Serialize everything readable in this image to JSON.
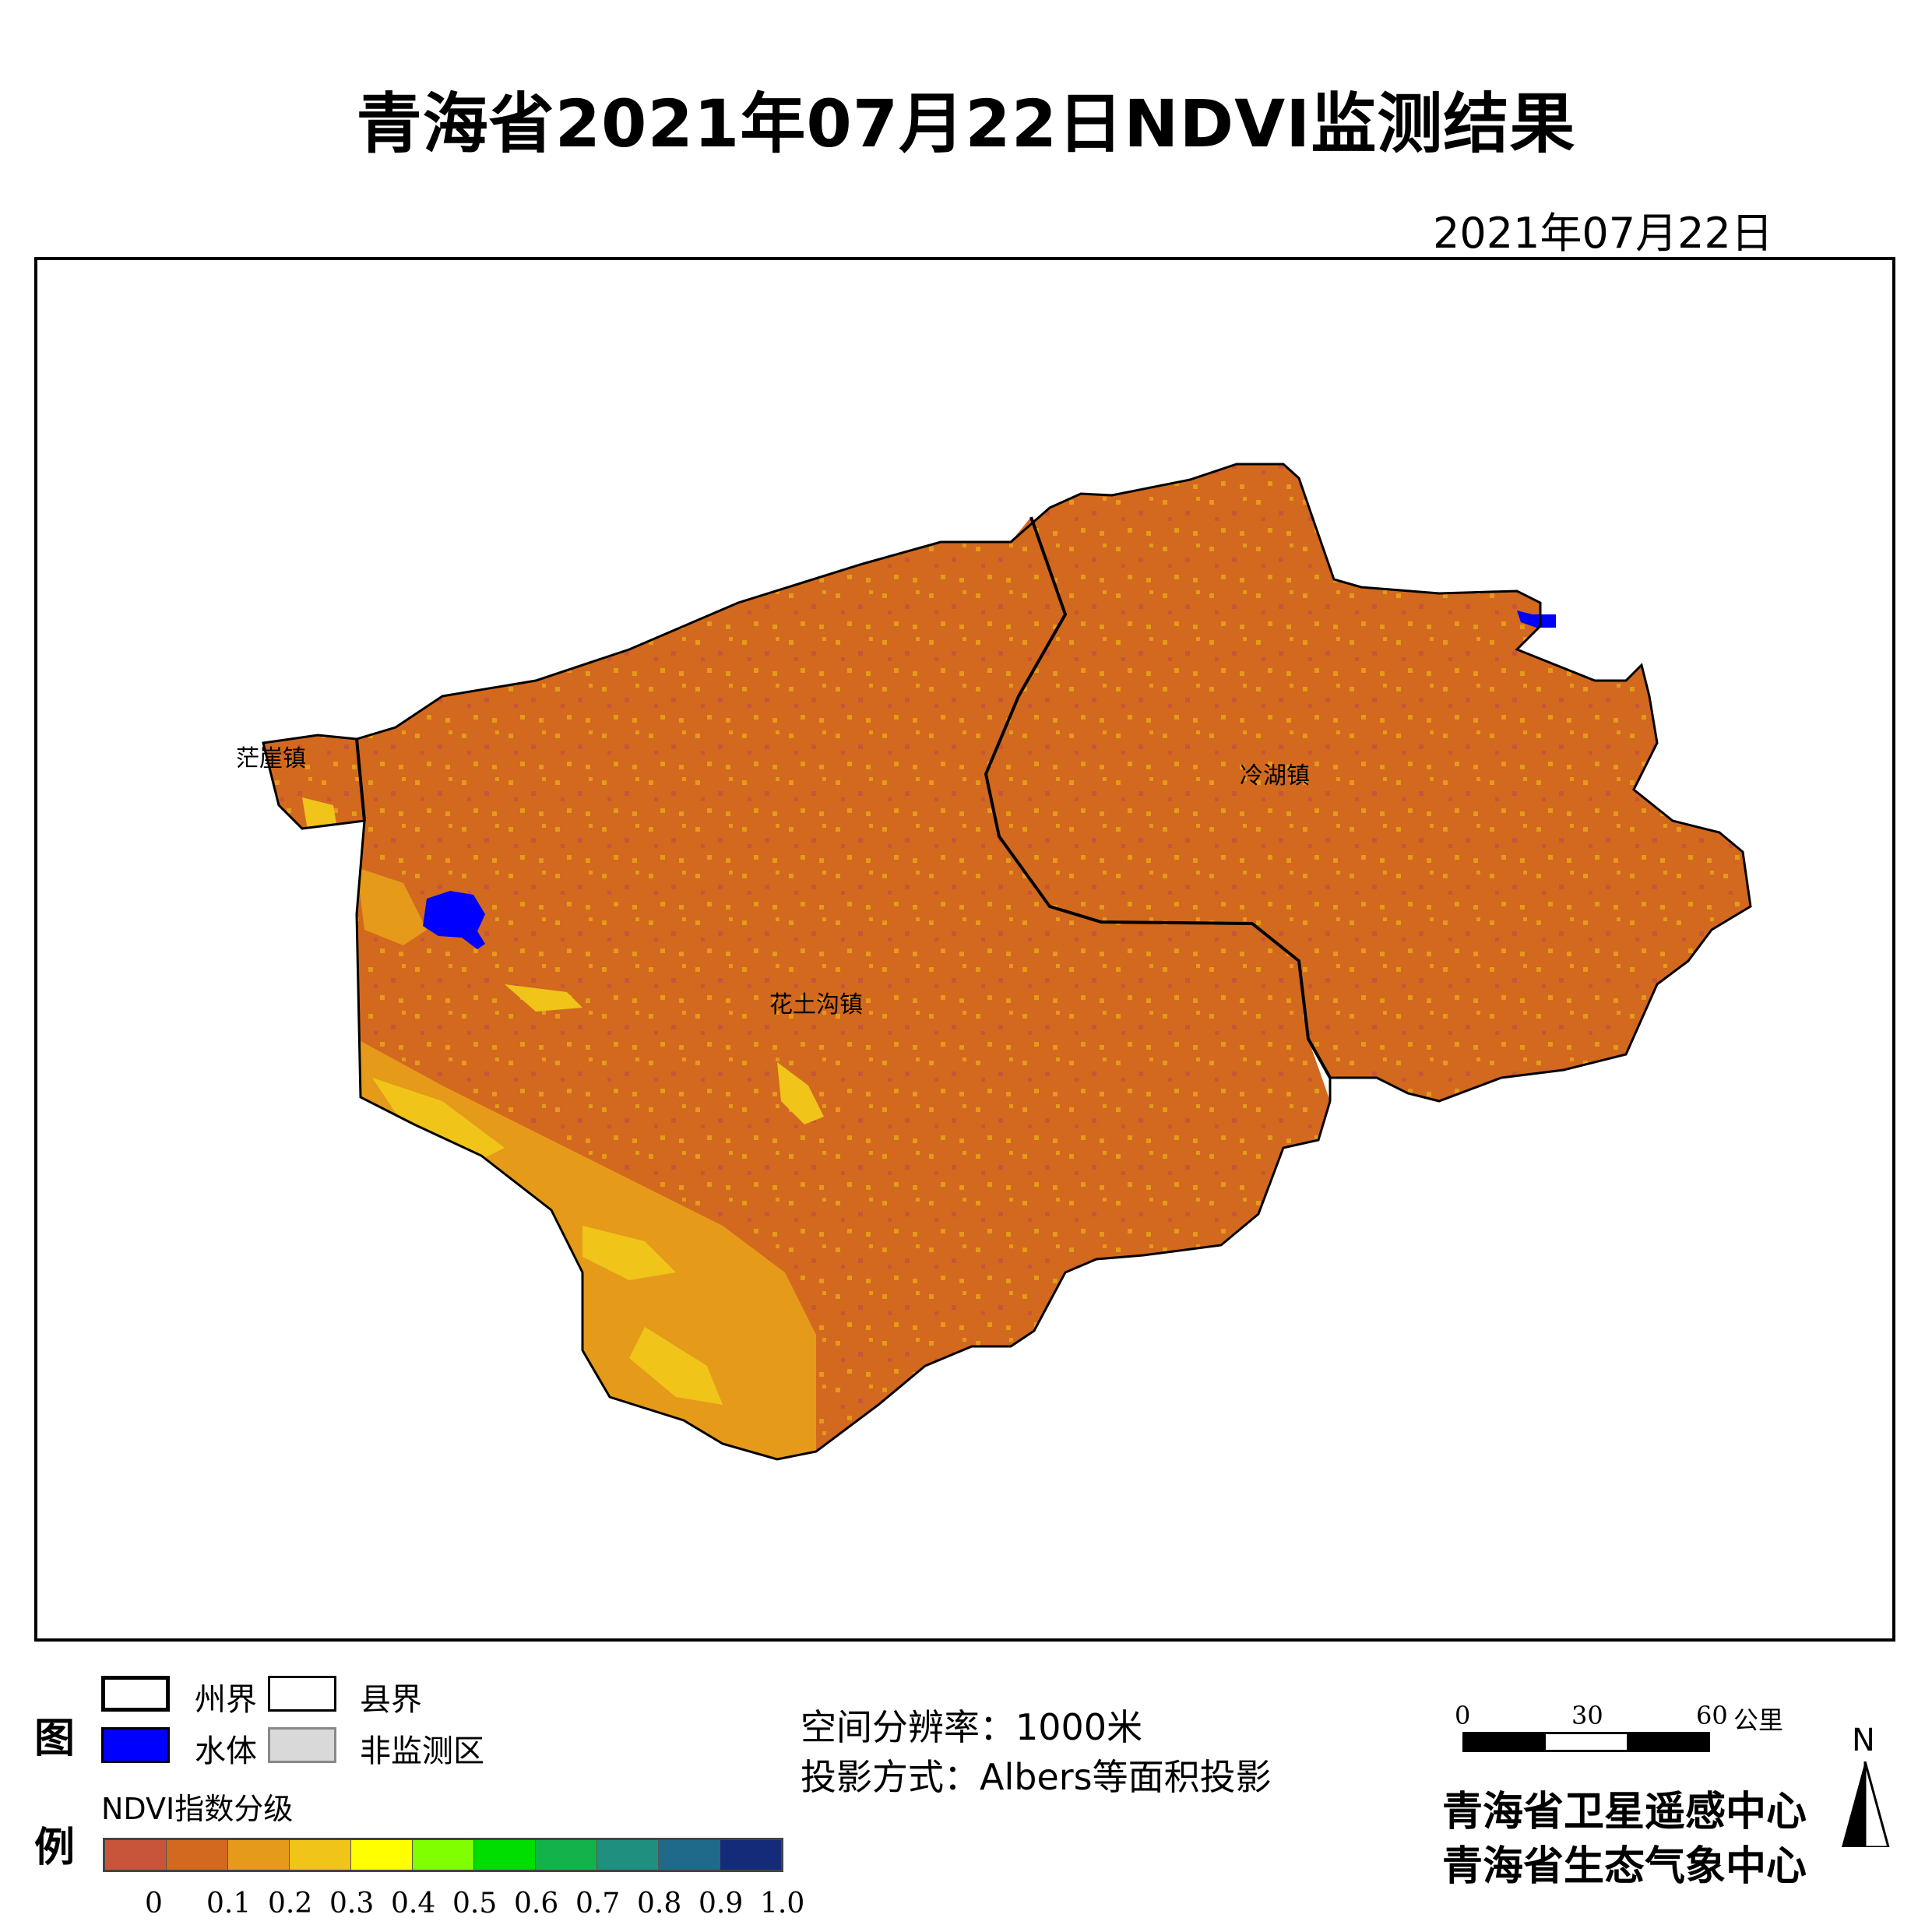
{
  "title": "青海省2021年07月22日NDVI监测结果",
  "date": "2021年07月22日",
  "map": {
    "places": [
      "茫崖镇",
      "冷湖镇",
      "花土沟镇"
    ]
  },
  "legend": {
    "heading_top": "图",
    "heading_bottom": "例",
    "items": [
      {
        "label": "州界",
        "fill": "#ffffff",
        "border": "thick black"
      },
      {
        "label": "县界",
        "fill": "#ffffff",
        "border": "thin black"
      },
      {
        "label": "水体",
        "fill": "#0000ff",
        "border": "black"
      },
      {
        "label": "非监测区",
        "fill": "#d9d9d9",
        "border": "gray"
      }
    ],
    "ramp_title": "NDVI指数分级",
    "ramp_colors": [
      "#c8553a",
      "#d2691e",
      "#e59a1a",
      "#f0c419",
      "#ffff00",
      "#7fff00",
      "#00dd00",
      "#14b24a",
      "#1f9080",
      "#1f6a8a",
      "#142b7a"
    ],
    "ramp_ticks": [
      "0",
      "0.1",
      "0.2",
      "0.3",
      "0.4",
      "0.5",
      "0.6",
      "0.7",
      "0.8",
      "0.9",
      "1.0"
    ]
  },
  "info": {
    "resolution": "空间分辨率：1000米",
    "projection": "投影方式：Albers等面积投影"
  },
  "scale_bar": {
    "ticks": [
      "0",
      "30",
      "60"
    ],
    "unit": "公里"
  },
  "north": "N",
  "org": {
    "line1": "青海省卫星遥感中心",
    "line2": "青海省生态气象中心"
  }
}
